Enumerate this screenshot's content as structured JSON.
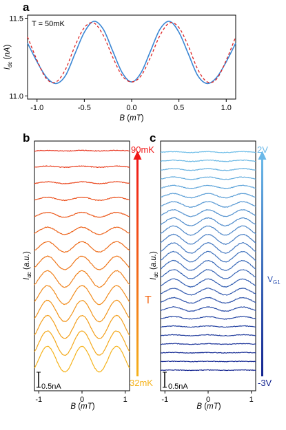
{
  "colors": {
    "panel_a_data": "#3a86d4",
    "panel_a_fit": "#dd2222",
    "panel_b_cold": "#f5b21a",
    "panel_b_hot": "#e8321c",
    "panel_c_low": "#12238f",
    "panel_c_high": "#6dbde8",
    "arrow_b_top": "#f01818",
    "arrow_b_bottom": "#f5b21a",
    "arrow_c_top": "#6ab8e8",
    "arrow_c_bottom": "#12238f"
  },
  "chart_data": [
    {
      "panel": "a",
      "type": "line",
      "annotation": "T = 50mK",
      "xlabel": "B (mT)",
      "ylabel": "Idc (nA)",
      "xlim": [
        -1.1,
        1.1
      ],
      "ylim": [
        10.98,
        11.52
      ],
      "xticks": [
        "-1.0",
        "-0.5",
        "0.0",
        "0.5",
        "1.0"
      ],
      "yticks": [
        "11.5",
        "11.0"
      ],
      "grid": false,
      "series": [
        {
          "style": "solid",
          "x": [
            -1.1,
            -1.0,
            -0.9,
            -0.8,
            -0.7,
            -0.6,
            -0.5,
            -0.4,
            -0.3,
            -0.2,
            -0.1,
            0.0,
            0.1,
            0.2,
            0.3,
            0.4,
            0.5,
            0.6,
            0.7,
            0.8,
            0.9,
            1.0,
            1.1
          ],
          "y": [
            11.34,
            11.22,
            11.12,
            11.08,
            11.13,
            11.27,
            11.41,
            11.48,
            11.43,
            11.29,
            11.15,
            11.09,
            11.15,
            11.29,
            11.43,
            11.48,
            11.41,
            11.27,
            11.13,
            11.08,
            11.12,
            11.22,
            11.34
          ]
        },
        {
          "style": "dashed",
          "x": [
            -1.1,
            -1.0,
            -0.9,
            -0.8,
            -0.7,
            -0.6,
            -0.5,
            -0.4,
            -0.3,
            -0.2,
            -0.1,
            0.0,
            0.1,
            0.2,
            0.3,
            0.4,
            0.5,
            0.6,
            0.7,
            0.8,
            0.9,
            1.0,
            1.1
          ],
          "y": [
            11.38,
            11.23,
            11.11,
            11.09,
            11.17,
            11.32,
            11.44,
            11.47,
            11.39,
            11.25,
            11.13,
            11.09,
            11.13,
            11.25,
            11.39,
            11.47,
            11.44,
            11.32,
            11.17,
            11.09,
            11.11,
            11.23,
            11.38
          ]
        }
      ]
    },
    {
      "panel": "b",
      "type": "line",
      "xlabel": "B (mT)",
      "ylabel": "Idc (a.u.)",
      "xlim": [
        -1.1,
        1.1
      ],
      "xticks": [
        "-1",
        "0",
        "1"
      ],
      "scale_bar": "0.5nA",
      "arrow_label": "T",
      "top_label": "90mK",
      "bottom_label": "32mK",
      "trace_count": 14,
      "amplitudes_nA_bottom_to_top": [
        0.42,
        0.4,
        0.38,
        0.35,
        0.31,
        0.27,
        0.22,
        0.17,
        0.12,
        0.08,
        0.05,
        0.03,
        0.02,
        0.01
      ]
    },
    {
      "panel": "c",
      "type": "line",
      "xlabel": "B (mT)",
      "ylabel": "Idc (a.u.)",
      "xlim": [
        -1.1,
        1.1
      ],
      "xticks": [
        "-1",
        "0",
        "1"
      ],
      "scale_bar": "0.5nA",
      "arrow_label": "VG1",
      "top_label": "2V",
      "bottom_label": "-3V",
      "trace_count": 26,
      "amplitudes_nA_bottom_to_top": [
        0.005,
        0.005,
        0.008,
        0.01,
        0.015,
        0.02,
        0.04,
        0.07,
        0.09,
        0.11,
        0.13,
        0.15,
        0.16,
        0.17,
        0.17,
        0.16,
        0.15,
        0.13,
        0.11,
        0.09,
        0.07,
        0.05,
        0.04,
        0.03,
        0.02,
        0.015
      ]
    }
  ]
}
